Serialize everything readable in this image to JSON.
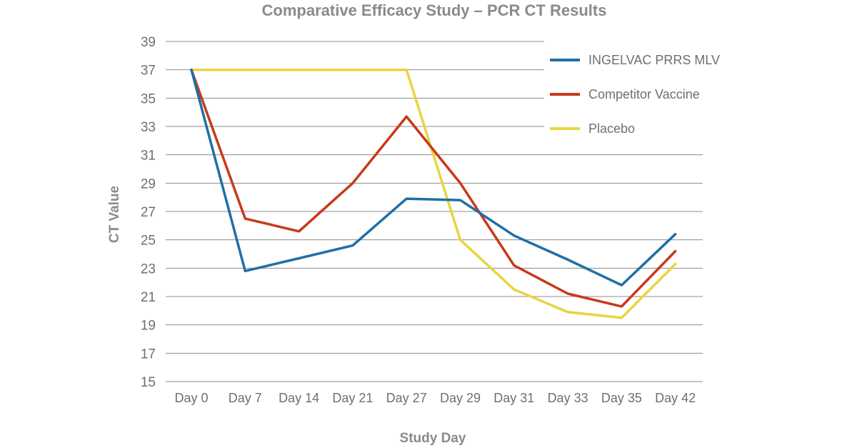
{
  "chart_data": {
    "type": "line",
    "title": "Comparative Efficacy Study – PCR CT Results",
    "xlabel": "Study Day",
    "ylabel": "CT Value",
    "categories": [
      "Day 0",
      "Day 7",
      "Day 14",
      "Day 21",
      "Day 27",
      "Day 29",
      "Day 31",
      "Day 33",
      "Day 35",
      "Day 42"
    ],
    "ylim": [
      15,
      39
    ],
    "yticks": [
      15,
      17,
      19,
      21,
      23,
      25,
      27,
      29,
      31,
      33,
      35,
      37,
      39
    ],
    "grid": true,
    "legend_position": "top-right",
    "series": [
      {
        "name": "INGELVAC PRRS MLV",
        "color": "#1f6fa6",
        "values": [
          37.0,
          22.8,
          23.7,
          24.6,
          27.9,
          27.8,
          25.3,
          23.6,
          21.8,
          25.4
        ]
      },
      {
        "name": "Competitor Vaccine",
        "color": "#c8391a",
        "values": [
          37.0,
          26.5,
          25.6,
          29.0,
          33.7,
          29.0,
          23.2,
          21.2,
          20.3,
          24.2
        ]
      },
      {
        "name": "Placebo",
        "color": "#e8d440",
        "values": [
          37.0,
          37.0,
          37.0,
          37.0,
          37.0,
          25.0,
          21.5,
          19.9,
          19.5,
          23.3
        ]
      }
    ]
  }
}
